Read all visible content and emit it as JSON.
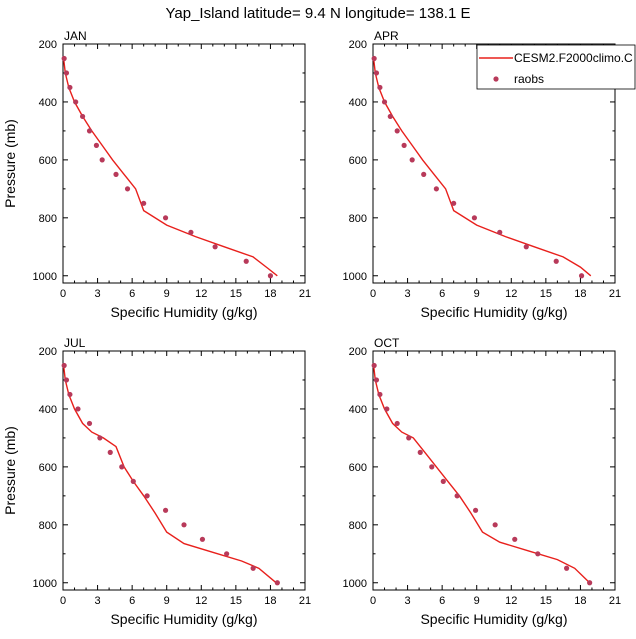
{
  "title": "Yap_Island  latitude= 9.4 N longitude= 138.1 E",
  "legend": {
    "placement": "top-right of APR panel",
    "items": [
      {
        "label": "CESM2.F2000climo.C",
        "kind": "line",
        "color": "#e8201c"
      },
      {
        "label": "raobs",
        "kind": "marker",
        "color": "#b83a5a"
      }
    ]
  },
  "chart_data": [
    {
      "type": "line",
      "panel": "JAN",
      "xlabel": "Specific Humidity (g/kg)",
      "ylabel": "Pressure (mb)",
      "xlim": [
        0,
        21
      ],
      "ylim": [
        1025,
        200
      ],
      "y_reversed": true,
      "xticks": [
        "0",
        "3",
        "6",
        "9",
        "12",
        "15",
        "18",
        "21"
      ],
      "yticks": [
        "200",
        "400",
        "600",
        "800",
        "1000"
      ],
      "grid": false,
      "series": [
        {
          "name": "CESM2.F2000climo.C",
          "style": "line",
          "x": [
            0.05,
            0.2,
            0.5,
            1.0,
            1.7,
            2.5,
            3.4,
            4.3,
            5.3,
            6.3,
            7.0,
            9.0,
            11.5,
            14.0,
            16.5,
            17.8,
            18.6
          ],
          "y": [
            250,
            300,
            350,
            400,
            450,
            500,
            550,
            600,
            650,
            700,
            775,
            825,
            865,
            900,
            935,
            975,
            1000
          ]
        },
        {
          "name": "raobs",
          "style": "marker",
          "x": [
            0.1,
            0.3,
            0.6,
            1.1,
            1.7,
            2.3,
            2.9,
            3.4,
            4.6,
            5.6,
            7.0,
            8.9,
            11.1,
            13.2,
            15.9,
            18.0
          ],
          "y": [
            250,
            300,
            350,
            400,
            450,
            500,
            550,
            600,
            650,
            700,
            750,
            800,
            850,
            900,
            950,
            1000
          ]
        }
      ]
    },
    {
      "type": "line",
      "panel": "APR",
      "xlabel": "Specific Humidity (g/kg)",
      "ylabel": "",
      "xlim": [
        0,
        21
      ],
      "ylim": [
        1025,
        200
      ],
      "y_reversed": true,
      "xticks": [
        "0",
        "3",
        "6",
        "9",
        "12",
        "15",
        "18",
        "21"
      ],
      "yticks": [
        "200",
        "400",
        "600",
        "800",
        "1000"
      ],
      "grid": false,
      "series": [
        {
          "name": "CESM2.F2000climo.C",
          "style": "line",
          "x": [
            0.05,
            0.2,
            0.5,
            1.0,
            1.7,
            2.5,
            3.4,
            4.3,
            5.3,
            6.3,
            7.0,
            9.0,
            11.5,
            14.0,
            16.5,
            18.0,
            18.9
          ],
          "y": [
            250,
            300,
            350,
            400,
            450,
            500,
            550,
            600,
            650,
            700,
            775,
            825,
            865,
            900,
            935,
            970,
            1000
          ]
        },
        {
          "name": "raobs",
          "style": "marker",
          "x": [
            0.1,
            0.3,
            0.6,
            1.0,
            1.5,
            2.1,
            2.7,
            3.4,
            4.4,
            5.5,
            7.0,
            8.8,
            11.0,
            13.3,
            15.9,
            18.1
          ],
          "y": [
            250,
            300,
            350,
            400,
            450,
            500,
            550,
            600,
            650,
            700,
            750,
            800,
            850,
            900,
            950,
            1000
          ]
        }
      ]
    },
    {
      "type": "line",
      "panel": "JUL",
      "xlabel": "Specific Humidity (g/kg)",
      "ylabel": "Pressure (mb)",
      "xlim": [
        0,
        21
      ],
      "ylim": [
        1025,
        200
      ],
      "y_reversed": true,
      "xticks": [
        "0",
        "3",
        "6",
        "9",
        "12",
        "15",
        "18",
        "21"
      ],
      "yticks": [
        "200",
        "400",
        "600",
        "800",
        "1000"
      ],
      "grid": false,
      "series": [
        {
          "name": "CESM2.F2000climo.C",
          "style": "line",
          "x": [
            0.05,
            0.2,
            0.5,
            1.0,
            1.7,
            2.5,
            3.5,
            4.6,
            5.3,
            6.1,
            7.0,
            8.0,
            9.0,
            10.5,
            13.0,
            15.5,
            17.0,
            18.5
          ],
          "y": [
            250,
            300,
            350,
            400,
            450,
            480,
            500,
            530,
            600,
            650,
            700,
            760,
            825,
            865,
            895,
            925,
            950,
            1000
          ]
        },
        {
          "name": "raobs",
          "style": "marker",
          "x": [
            0.1,
            0.3,
            0.6,
            1.3,
            2.3,
            3.2,
            4.1,
            5.1,
            6.1,
            7.3,
            8.9,
            10.5,
            12.1,
            14.2,
            16.5,
            18.6
          ],
          "y": [
            250,
            300,
            350,
            400,
            450,
            500,
            550,
            600,
            650,
            700,
            750,
            800,
            850,
            900,
            950,
            1000
          ]
        }
      ]
    },
    {
      "type": "line",
      "panel": "OCT",
      "xlabel": "Specific Humidity (g/kg)",
      "ylabel": "",
      "xlim": [
        0,
        21
      ],
      "ylim": [
        1025,
        200
      ],
      "y_reversed": true,
      "xticks": [
        "0",
        "3",
        "6",
        "9",
        "12",
        "15",
        "18",
        "21"
      ],
      "yticks": [
        "200",
        "400",
        "600",
        "800",
        "1000"
      ],
      "grid": false,
      "series": [
        {
          "name": "CESM2.F2000climo.C",
          "style": "line",
          "x": [
            0.05,
            0.2,
            0.5,
            1.0,
            1.7,
            2.5,
            3.5,
            4.5,
            5.5,
            6.5,
            7.5,
            8.5,
            9.5,
            11.0,
            13.5,
            16.0,
            17.5,
            18.8
          ],
          "y": [
            250,
            300,
            350,
            400,
            450,
            480,
            500,
            550,
            600,
            650,
            700,
            760,
            825,
            860,
            890,
            920,
            950,
            1000
          ]
        },
        {
          "name": "raobs",
          "style": "marker",
          "x": [
            0.1,
            0.3,
            0.6,
            1.2,
            2.1,
            3.1,
            4.1,
            5.1,
            6.1,
            7.3,
            8.9,
            10.6,
            12.3,
            14.3,
            16.8,
            18.8
          ],
          "y": [
            250,
            300,
            350,
            400,
            450,
            500,
            550,
            600,
            650,
            700,
            750,
            800,
            850,
            900,
            950,
            1000
          ]
        }
      ]
    }
  ]
}
